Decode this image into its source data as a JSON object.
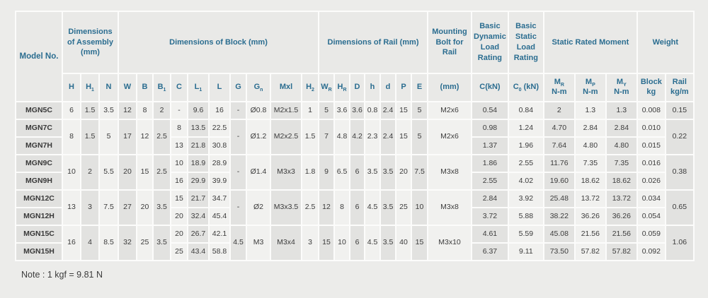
{
  "colors": {
    "header_text": "#2b6d90",
    "cell_text": "#3c3c3c",
    "light_column": "#f1f1ef",
    "dark_column": "#e2e2e0",
    "header_bg": "#e9e9e7",
    "model_cell_bg": "#e1e1df"
  },
  "table": {
    "model_header": "Model No.",
    "bands": [
      {
        "label": "Dimensions of Assembly (mm)",
        "span": 3
      },
      {
        "label": "Dimensions of Block (mm)",
        "span": 10
      },
      {
        "label": "Dimensions of Rail (mm)",
        "span": 7
      },
      {
        "label": "Mounting Bolt for Rail",
        "span": 1
      },
      {
        "label": "Basic Dynamic Load Rating",
        "span": 1
      },
      {
        "label": "Basic Static Load Rating",
        "span": 1
      },
      {
        "label": "Static Rated Moment",
        "span": 3
      },
      {
        "label": "Weight",
        "span": 2
      }
    ],
    "sub_headers": {
      "H": "H",
      "H1": "H_(1)",
      "N": "N",
      "W": "W",
      "B": "B",
      "B1": "B_(1)",
      "C": "C",
      "L1": "L_(1)",
      "L": "L",
      "G": "G",
      "Gn": "G_(n)",
      "Mxl": "Mxl",
      "H2": "H_(2)",
      "WR": "W_(R)",
      "HR": "H_(R)",
      "D": "D",
      "h": "h",
      "d": "d",
      "P": "P",
      "E": "E",
      "bolt": "(mm)",
      "Ckn": "C(kN)",
      "C0kn": "C_(0) (kN)",
      "MR": "M_(R)|N-m",
      "MP": "M_(P)|N-m",
      "MY": "M_(Y)|N-m",
      "block": "Block|kg",
      "rail": "Rail|kg/m"
    },
    "groups": [
      {
        "shared": {
          "H": "6",
          "H1": "1.5",
          "N": "3.5",
          "W": "12",
          "B": "8",
          "B1": "2",
          "G": "-",
          "Gn": "Ø0.8",
          "Mxl": "M2x1.5",
          "H2": "1",
          "WR": "5",
          "HR": "3.6",
          "D": "3.6",
          "h": "0.8",
          "d": "2.4",
          "P": "15",
          "E": "5",
          "bolt": "M2x6",
          "rail": "0.15"
        },
        "rows": [
          {
            "model": "MGN5C",
            "C": "-",
            "L1": "9.6",
            "L": "16",
            "Ckn": "0.54",
            "C0kn": "0.84",
            "MR": "2",
            "MP": "1.3",
            "MY": "1.3",
            "block": "0.008"
          }
        ]
      },
      {
        "shared": {
          "H": "8",
          "H1": "1.5",
          "N": "5",
          "W": "17",
          "B": "12",
          "B1": "2.5",
          "G": "-",
          "Gn": "Ø1.2",
          "Mxl": "M2x2.5",
          "H2": "1.5",
          "WR": "7",
          "HR": "4.8",
          "D": "4.2",
          "h": "2.3",
          "d": "2.4",
          "P": "15",
          "E": "5",
          "bolt": "M2x6",
          "rail": "0.22"
        },
        "rows": [
          {
            "model": "MGN7C",
            "C": "8",
            "L1": "13.5",
            "L": "22.5",
            "Ckn": "0.98",
            "C0kn": "1.24",
            "MR": "4.70",
            "MP": "2.84",
            "MY": "2.84",
            "block": "0.010"
          },
          {
            "model": "MGN7H",
            "C": "13",
            "L1": "21.8",
            "L": "30.8",
            "Ckn": "1.37",
            "C0kn": "1.96",
            "MR": "7.64",
            "MP": "4.80",
            "MY": "4.80",
            "block": "0.015"
          }
        ]
      },
      {
        "shared": {
          "H": "10",
          "H1": "2",
          "N": "5.5",
          "W": "20",
          "B": "15",
          "B1": "2.5",
          "G": "-",
          "Gn": "Ø1.4",
          "Mxl": "M3x3",
          "H2": "1.8",
          "WR": "9",
          "HR": "6.5",
          "D": "6",
          "h": "3.5",
          "d": "3.5",
          "P": "20",
          "E": "7.5",
          "bolt": "M3x8",
          "rail": "0.38"
        },
        "rows": [
          {
            "model": "MGN9C",
            "C": "10",
            "L1": "18.9",
            "L": "28.9",
            "Ckn": "1.86",
            "C0kn": "2.55",
            "MR": "11.76",
            "MP": "7.35",
            "MY": "7.35",
            "block": "0.016"
          },
          {
            "model": "MGN9H",
            "C": "16",
            "L1": "29.9",
            "L": "39.9",
            "Ckn": "2.55",
            "C0kn": "4.02",
            "MR": "19.60",
            "MP": "18.62",
            "MY": "18.62",
            "block": "0.026"
          }
        ]
      },
      {
        "shared": {
          "H": "13",
          "H1": "3",
          "N": "7.5",
          "W": "27",
          "B": "20",
          "B1": "3.5",
          "G": "-",
          "Gn": "Ø2",
          "Mxl": "M3x3.5",
          "H2": "2.5",
          "WR": "12",
          "HR": "8",
          "D": "6",
          "h": "4.5",
          "d": "3.5",
          "P": "25",
          "E": "10",
          "bolt": "M3x8",
          "rail": "0.65"
        },
        "rows": [
          {
            "model": "MGN12C",
            "C": "15",
            "L1": "21.7",
            "L": "34.7",
            "Ckn": "2.84",
            "C0kn": "3.92",
            "MR": "25.48",
            "MP": "13.72",
            "MY": "13.72",
            "block": "0.034"
          },
          {
            "model": "MGN12H",
            "C": "20",
            "L1": "32.4",
            "L": "45.4",
            "Ckn": "3.72",
            "C0kn": "5.88",
            "MR": "38.22",
            "MP": "36.26",
            "MY": "36.26",
            "block": "0.054"
          }
        ]
      },
      {
        "shared": {
          "H": "16",
          "H1": "4",
          "N": "8.5",
          "W": "32",
          "B": "25",
          "B1": "3.5",
          "G": "4.5",
          "Gn": "M3",
          "Mxl": "M3x4",
          "H2": "3",
          "WR": "15",
          "HR": "10",
          "D": "6",
          "h": "4.5",
          "d": "3.5",
          "P": "40",
          "E": "15",
          "bolt": "M3x10",
          "rail": "1.06"
        },
        "rows": [
          {
            "model": "MGN15C",
            "C": "20",
            "L1": "26.7",
            "L": "42.1",
            "Ckn": "4.61",
            "C0kn": "5.59",
            "MR": "45.08",
            "MP": "21.56",
            "MY": "21.56",
            "block": "0.059"
          },
          {
            "model": "MGN15H",
            "C": "25",
            "L1": "43.4",
            "L": "58.8",
            "Ckn": "6.37",
            "C0kn": "9.11",
            "MR": "73.50",
            "MP": "57.82",
            "MY": "57.82",
            "block": "0.092"
          }
        ]
      }
    ],
    "note": "Note : 1 kgf = 9.81 N"
  }
}
